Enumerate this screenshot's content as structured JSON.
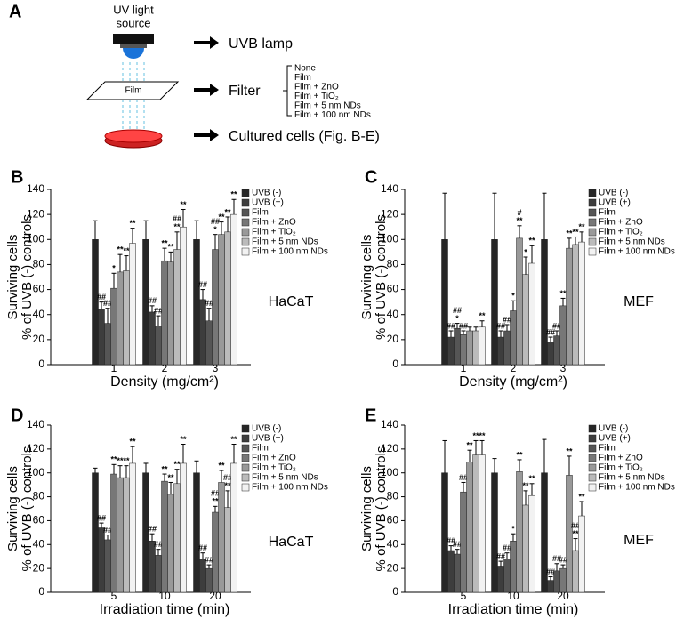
{
  "diagram": {
    "label": "A",
    "source": [
      "UV light",
      "source"
    ],
    "film": "Film",
    "steps": [
      "UVB lamp",
      "Filter",
      "Cultured cells (Fig. B-E)"
    ],
    "filters": [
      "None",
      "Film",
      "Film + ZnO",
      "Film + TiO₂",
      "Film + 5 nm NDs",
      "Film + 100 nm NDs"
    ]
  },
  "chart_data": [
    {
      "type": "bar",
      "label": "B",
      "cell_line": "HaCaT",
      "ylabel": [
        "Surviving cells",
        "% of UVB (-) controls"
      ],
      "xlabel": "Density (mg/cm²)",
      "categories": [
        "1",
        "2",
        "3"
      ],
      "ylim": [
        0,
        140
      ],
      "yticks": [
        0,
        20,
        40,
        60,
        80,
        100,
        120,
        140
      ],
      "series": [
        {
          "name": "UVB (-)",
          "color": "#262626",
          "values": [
            100,
            100,
            100
          ],
          "errors": [
            15,
            15,
            15
          ],
          "annotations": [
            null,
            null,
            null
          ]
        },
        {
          "name": "UVB (+)",
          "color": "#3d3d3d",
          "values": [
            44,
            42,
            52
          ],
          "errors": [
            6,
            5,
            8
          ],
          "annotations": [
            [
              "##"
            ],
            [
              "##"
            ],
            [
              "##"
            ]
          ]
        },
        {
          "name": "Film",
          "color": "#555555",
          "values": [
            33,
            31,
            35
          ],
          "errors": [
            12,
            8,
            10
          ],
          "annotations": [
            [
              "##"
            ],
            [
              "##"
            ],
            [
              "##"
            ]
          ]
        },
        {
          "name": "Film + ZnO",
          "color": "#777777",
          "values": [
            61,
            83,
            92
          ],
          "errors": [
            12,
            10,
            12
          ],
          "annotations": [
            [
              "*"
            ],
            [
              "**"
            ],
            [
              "##",
              "*"
            ]
          ]
        },
        {
          "name": "Film + TiO₂",
          "color": "#999999",
          "values": [
            74,
            82,
            104
          ],
          "errors": [
            14,
            8,
            10
          ],
          "annotations": [
            [
              "**"
            ],
            [
              "**"
            ],
            [
              "**"
            ]
          ]
        },
        {
          "name": "Film + 5 nm NDs",
          "color": "#bbbbbb",
          "values": [
            75,
            92,
            106
          ],
          "errors": [
            12,
            14,
            12
          ],
          "annotations": [
            [
              "**"
            ],
            [
              "##",
              "**"
            ],
            [
              "**"
            ]
          ]
        },
        {
          "name": "Film + 100 nm NDs",
          "color": "#f2f2f2",
          "values": [
            97,
            110,
            120
          ],
          "errors": [
            12,
            14,
            12
          ],
          "annotations": [
            [
              "**"
            ],
            [
              "**"
            ],
            [
              "**"
            ]
          ]
        }
      ]
    },
    {
      "type": "bar",
      "label": "C",
      "cell_line": "MEF",
      "ylabel": [
        "Surviving cells",
        "% of UVB (-) controls"
      ],
      "xlabel": "Density (mg/cm²)",
      "categories": [
        "1",
        "2",
        "3"
      ],
      "ylim": [
        0,
        140
      ],
      "yticks": [
        0,
        20,
        40,
        60,
        80,
        100,
        120,
        140
      ],
      "series": [
        {
          "name": "UVB (-)",
          "color": "#262626",
          "values": [
            100,
            100,
            100
          ],
          "errors": [
            37,
            37,
            37
          ],
          "annotations": [
            null,
            null,
            null
          ]
        },
        {
          "name": "UVB (+)",
          "color": "#3d3d3d",
          "values": [
            22,
            22,
            18
          ],
          "errors": [
            5,
            5,
            4
          ],
          "annotations": [
            [
              "##"
            ],
            [
              "##"
            ],
            [
              "##"
            ]
          ]
        },
        {
          "name": "Film",
          "color": "#555555",
          "values": [
            29,
            27,
            23
          ],
          "errors": [
            4,
            5,
            4
          ],
          "annotations": [
            [
              "##",
              "*"
            ],
            [
              "##"
            ],
            [
              "##"
            ]
          ]
        },
        {
          "name": "Film + ZnO",
          "color": "#777777",
          "values": [
            24,
            43,
            47
          ],
          "errors": [
            3,
            8,
            6
          ],
          "annotations": [
            [
              "##"
            ],
            [
              "*"
            ],
            [
              "**"
            ]
          ]
        },
        {
          "name": "Film + TiO₂",
          "color": "#999999",
          "values": [
            27,
            101,
            93
          ],
          "errors": [
            3,
            10,
            8
          ],
          "annotations": [
            null,
            [
              "#",
              "**"
            ],
            [
              "**"
            ]
          ]
        },
        {
          "name": "Film + 5 nm NDs",
          "color": "#bbbbbb",
          "values": [
            27,
            72,
            96
          ],
          "errors": [
            3,
            14,
            6
          ],
          "annotations": [
            null,
            [
              "*"
            ],
            [
              "**"
            ]
          ]
        },
        {
          "name": "Film + 100 nm NDs",
          "color": "#f2f2f2",
          "values": [
            30,
            81,
            98
          ],
          "errors": [
            5,
            14,
            8
          ],
          "annotations": [
            [
              "**"
            ],
            [
              "**"
            ],
            [
              "**"
            ]
          ]
        }
      ]
    },
    {
      "type": "bar",
      "label": "D",
      "cell_line": "HaCaT",
      "ylabel": [
        "Surviving cells",
        "% of UVB (-) controls"
      ],
      "xlabel": "Irradiation time (min)",
      "categories": [
        "5",
        "10",
        "20"
      ],
      "ylim": [
        0,
        140
      ],
      "yticks": [
        0,
        20,
        40,
        60,
        80,
        100,
        120,
        140
      ],
      "series": [
        {
          "name": "UVB (-)",
          "color": "#262626",
          "values": [
            100,
            100,
            100
          ],
          "errors": [
            4,
            8,
            10
          ],
          "annotations": [
            null,
            null,
            null
          ]
        },
        {
          "name": "UVB (+)",
          "color": "#3d3d3d",
          "values": [
            54,
            43,
            28
          ],
          "errors": [
            4,
            6,
            5
          ],
          "annotations": [
            [
              "##"
            ],
            [
              "##"
            ],
            [
              "##"
            ]
          ]
        },
        {
          "name": "Film",
          "color": "#555555",
          "values": [
            44,
            31,
            20
          ],
          "errors": [
            4,
            5,
            3
          ],
          "annotations": [
            [
              "##"
            ],
            [
              "##"
            ],
            [
              "##"
            ]
          ]
        },
        {
          "name": "Film + ZnO",
          "color": "#777777",
          "values": [
            99,
            93,
            67
          ],
          "errors": [
            8,
            6,
            5
          ],
          "annotations": [
            [
              "**"
            ],
            [
              "**"
            ],
            [
              "##",
              "**"
            ]
          ]
        },
        {
          "name": "Film + TiO₂",
          "color": "#999999",
          "values": [
            96,
            82,
            92
          ],
          "errors": [
            10,
            10,
            10
          ],
          "annotations": [
            [
              "**"
            ],
            [
              "**"
            ],
            [
              "**"
            ]
          ]
        },
        {
          "name": "Film + 5 nm NDs",
          "color": "#bbbbbb",
          "values": [
            96,
            91,
            71
          ],
          "errors": [
            10,
            12,
            14
          ],
          "annotations": [
            [
              "**"
            ],
            [
              "**"
            ],
            [
              "##",
              "**"
            ]
          ]
        },
        {
          "name": "Film + 100 nm NDs",
          "color": "#f2f2f2",
          "values": [
            108,
            108,
            108
          ],
          "errors": [
            14,
            16,
            16
          ],
          "annotations": [
            [
              "**"
            ],
            [
              "**"
            ],
            [
              "**"
            ]
          ]
        }
      ]
    },
    {
      "type": "bar",
      "label": "E",
      "cell_line": "MEF",
      "ylabel": [
        "Surviving cells",
        "% of UVB (-) controls"
      ],
      "xlabel": "Irradiation time (min)",
      "categories": [
        "5",
        "10",
        "20"
      ],
      "ylim": [
        0,
        140
      ],
      "yticks": [
        0,
        20,
        40,
        60,
        80,
        100,
        120,
        140
      ],
      "series": [
        {
          "name": "UVB (-)",
          "color": "#262626",
          "values": [
            100,
            100,
            100
          ],
          "errors": [
            27,
            12,
            28
          ],
          "annotations": [
            null,
            null,
            null
          ]
        },
        {
          "name": "UVB (+)",
          "color": "#3d3d3d",
          "values": [
            35,
            22,
            10
          ],
          "errors": [
            4,
            4,
            3
          ],
          "annotations": [
            [
              "##"
            ],
            [
              "##"
            ],
            [
              "##"
            ]
          ]
        },
        {
          "name": "Film",
          "color": "#555555",
          "values": [
            32,
            28,
            18
          ],
          "errors": [
            4,
            5,
            6
          ],
          "annotations": [
            [
              "##"
            ],
            [
              "##"
            ],
            [
              "##"
            ]
          ]
        },
        {
          "name": "Film + ZnO",
          "color": "#777777",
          "values": [
            84,
            43,
            20
          ],
          "errors": [
            8,
            6,
            3
          ],
          "annotations": [
            [
              "##"
            ],
            [
              "*"
            ],
            [
              "##"
            ]
          ]
        },
        {
          "name": "Film + TiO₂",
          "color": "#999999",
          "values": [
            109,
            101,
            98
          ],
          "errors": [
            10,
            10,
            16
          ],
          "annotations": [
            [
              "**"
            ],
            [
              "**"
            ],
            [
              "**"
            ]
          ]
        },
        {
          "name": "Film + 5 nm NDs",
          "color": "#bbbbbb",
          "values": [
            115,
            73,
            35
          ],
          "errors": [
            12,
            12,
            10
          ],
          "annotations": [
            [
              "**"
            ],
            [
              "**"
            ],
            [
              "##",
              "**"
            ]
          ]
        },
        {
          "name": "Film + 100 nm NDs",
          "color": "#f2f2f2",
          "values": [
            115,
            81,
            64
          ],
          "errors": [
            12,
            10,
            12
          ],
          "annotations": [
            [
              "**"
            ],
            [
              "**"
            ],
            [
              "**"
            ]
          ]
        }
      ]
    }
  ]
}
